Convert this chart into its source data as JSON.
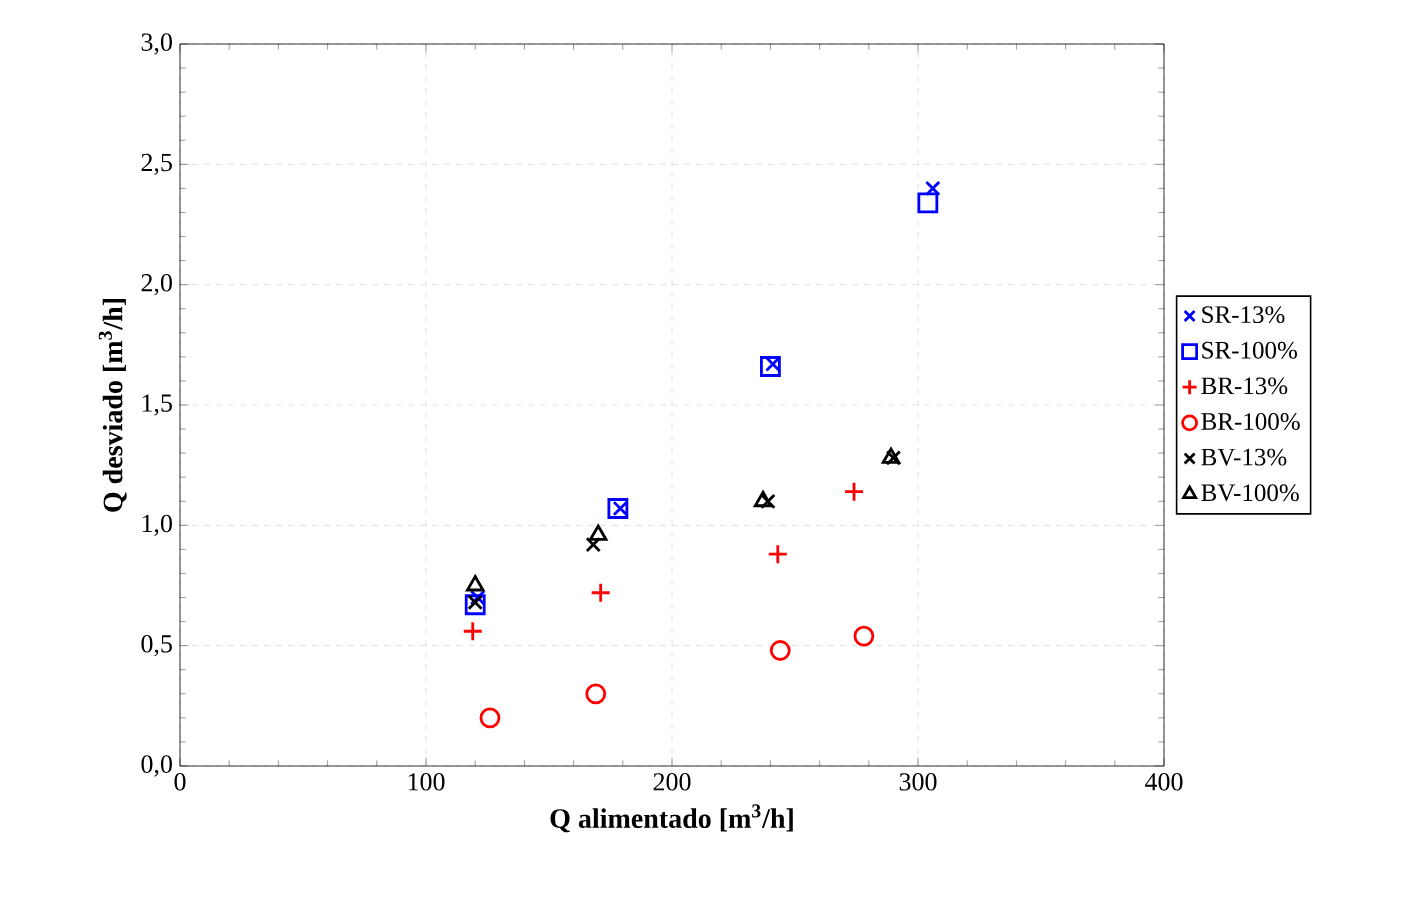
{
  "chart_data": {
    "type": "scatter",
    "xlabel": "Q alimentado  [m$^{3}$/h]",
    "ylabel": "Q desviado [m$^{3}$/h]",
    "xlim": [
      0,
      400
    ],
    "ylim": [
      0,
      3.0
    ],
    "xticks": [
      0,
      100,
      200,
      300,
      400
    ],
    "yticks": [
      {
        "value": 0,
        "label": "0,0"
      },
      {
        "value": 0.5,
        "label": "0,5"
      },
      {
        "value": 1.0,
        "label": "1,0"
      },
      {
        "value": 1.5,
        "label": "1,5"
      },
      {
        "value": 2.0,
        "label": "2,0"
      },
      {
        "value": 2.5,
        "label": "2,5"
      },
      {
        "value": 3.0,
        "label": "3,0"
      }
    ],
    "grid": true,
    "legend": "right",
    "series": [
      {
        "name": "SR-13%",
        "color": "#0000ff",
        "marker": "cross",
        "x": [
          121,
          179,
          241,
          306
        ],
        "values": [
          0.7,
          1.07,
          1.67,
          2.4
        ]
      },
      {
        "name": "SR-100%",
        "color": "#0000ff",
        "marker": "square",
        "x": [
          120,
          178,
          240,
          304
        ],
        "values": [
          0.67,
          1.07,
          1.66,
          2.34
        ]
      },
      {
        "name": "BR-13%",
        "color": "#ff0000",
        "marker": "plus",
        "x": [
          119,
          171,
          243,
          274
        ],
        "values": [
          0.56,
          0.72,
          0.88,
          1.14
        ]
      },
      {
        "name": "BR-100%",
        "color": "#ff0000",
        "marker": "circle",
        "x": [
          126,
          169,
          244,
          278
        ],
        "values": [
          0.2,
          0.3,
          0.48,
          0.54
        ]
      },
      {
        "name": "BV-13%",
        "color": "#000000",
        "marker": "cross",
        "x": [
          120,
          168,
          239,
          290
        ],
        "values": [
          0.68,
          0.92,
          1.1,
          1.28
        ]
      },
      {
        "name": "BV-100%",
        "color": "#000000",
        "marker": "triangle",
        "x": [
          120,
          170,
          237,
          289
        ],
        "values": [
          0.75,
          0.96,
          1.1,
          1.28
        ]
      }
    ]
  }
}
